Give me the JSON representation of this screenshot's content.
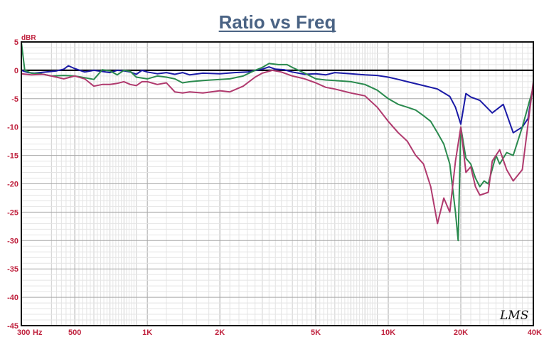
{
  "chart_data": {
    "type": "line",
    "title": "Ratio vs Freq",
    "ylabel": "dBR",
    "xlabel": "",
    "xscale": "log",
    "xlim": [
      300,
      40000
    ],
    "ylim": [
      -45,
      5
    ],
    "grid": true,
    "yticks": [
      5,
      0,
      -5,
      -10,
      -15,
      -20,
      -25,
      -30,
      -35,
      -40,
      -45
    ],
    "xticks": [
      {
        "value": 300,
        "label": "300"
      },
      {
        "value": 500,
        "label": "500"
      },
      {
        "value": 1000,
        "label": "1K"
      },
      {
        "value": 2000,
        "label": "2K"
      },
      {
        "value": 5000,
        "label": "5K"
      },
      {
        "value": 10000,
        "label": "10K"
      },
      {
        "value": 20000,
        "label": "20K"
      },
      {
        "value": 40000,
        "label": "40K"
      }
    ],
    "x_unit_label": "Hz",
    "watermark": "LMS",
    "series": [
      {
        "color": "#1a1aa6",
        "points": [
          [
            300,
            0.0
          ],
          [
            320,
            -0.4
          ],
          [
            340,
            -0.5
          ],
          [
            380,
            -0.3
          ],
          [
            420,
            -0.1
          ],
          [
            450,
            0.2
          ],
          [
            470,
            0.8
          ],
          [
            500,
            0.3
          ],
          [
            550,
            -0.3
          ],
          [
            600,
            0.0
          ],
          [
            650,
            -0.2
          ],
          [
            700,
            -0.4
          ],
          [
            750,
            0.0
          ],
          [
            800,
            -0.1
          ],
          [
            850,
            -0.3
          ],
          [
            900,
            -0.7
          ],
          [
            950,
            0.0
          ],
          [
            1000,
            -0.3
          ],
          [
            1100,
            -0.6
          ],
          [
            1200,
            -0.4
          ],
          [
            1300,
            -0.7
          ],
          [
            1400,
            -0.4
          ],
          [
            1500,
            -0.8
          ],
          [
            1700,
            -0.5
          ],
          [
            2000,
            -0.6
          ],
          [
            2300,
            -0.4
          ],
          [
            2600,
            -0.3
          ],
          [
            3000,
            0.2
          ],
          [
            3200,
            0.6
          ],
          [
            3400,
            0.2
          ],
          [
            3700,
            0.1
          ],
          [
            4000,
            -0.3
          ],
          [
            4500,
            -0.7
          ],
          [
            5000,
            -0.6
          ],
          [
            5500,
            -0.8
          ],
          [
            6000,
            -0.4
          ],
          [
            7000,
            -0.6
          ],
          [
            8000,
            -0.8
          ],
          [
            9000,
            -0.9
          ],
          [
            10000,
            -1.2
          ],
          [
            11000,
            -1.6
          ],
          [
            12000,
            -2.0
          ],
          [
            14000,
            -2.7
          ],
          [
            16000,
            -3.3
          ],
          [
            18000,
            -4.6
          ],
          [
            19000,
            -6.5
          ],
          [
            20000,
            -9.5
          ],
          [
            21000,
            -4.1
          ],
          [
            22000,
            -4.7
          ],
          [
            24000,
            -5.3
          ],
          [
            27000,
            -7.5
          ],
          [
            30000,
            -6.0
          ],
          [
            33000,
            -11.0
          ],
          [
            36000,
            -10.0
          ],
          [
            38000,
            -8.5
          ],
          [
            40000,
            -2.5
          ]
        ]
      },
      {
        "color": "#2a8a4e",
        "points": [
          [
            300,
            5.0
          ],
          [
            310,
            0.0
          ],
          [
            330,
            -0.5
          ],
          [
            360,
            -0.6
          ],
          [
            400,
            -1.0
          ],
          [
            450,
            -0.9
          ],
          [
            500,
            -1.0
          ],
          [
            550,
            -1.3
          ],
          [
            600,
            -1.6
          ],
          [
            650,
            0.1
          ],
          [
            700,
            -0.1
          ],
          [
            750,
            -0.8
          ],
          [
            800,
            0.0
          ],
          [
            850,
            -0.2
          ],
          [
            900,
            -1.2
          ],
          [
            1000,
            -1.5
          ],
          [
            1100,
            -1.0
          ],
          [
            1200,
            -1.2
          ],
          [
            1300,
            -1.5
          ],
          [
            1400,
            -2.2
          ],
          [
            1500,
            -2.0
          ],
          [
            1700,
            -1.8
          ],
          [
            2000,
            -1.6
          ],
          [
            2200,
            -1.5
          ],
          [
            2500,
            -1.0
          ],
          [
            2800,
            0.0
          ],
          [
            3000,
            0.5
          ],
          [
            3200,
            1.2
          ],
          [
            3500,
            1.0
          ],
          [
            3800,
            1.0
          ],
          [
            4000,
            0.5
          ],
          [
            4500,
            -0.5
          ],
          [
            5000,
            -1.5
          ],
          [
            5500,
            -1.7
          ],
          [
            6000,
            -1.8
          ],
          [
            7000,
            -2.0
          ],
          [
            8000,
            -2.5
          ],
          [
            9000,
            -3.5
          ],
          [
            10000,
            -5.0
          ],
          [
            11000,
            -6.0
          ],
          [
            12000,
            -6.5
          ],
          [
            13000,
            -7.0
          ],
          [
            14000,
            -8.0
          ],
          [
            15000,
            -9.0
          ],
          [
            16000,
            -11.0
          ],
          [
            17000,
            -13.0
          ],
          [
            18000,
            -16.5
          ],
          [
            19000,
            -25.0
          ],
          [
            19500,
            -30.0
          ],
          [
            20000,
            -10.0
          ],
          [
            21000,
            -15.5
          ],
          [
            22000,
            -16.5
          ],
          [
            23000,
            -19.0
          ],
          [
            24000,
            -20.5
          ],
          [
            25000,
            -19.5
          ],
          [
            26000,
            -20.0
          ],
          [
            28000,
            -15.0
          ],
          [
            29000,
            -16.5
          ],
          [
            31000,
            -14.5
          ],
          [
            33000,
            -15.0
          ],
          [
            36000,
            -10.0
          ],
          [
            40000,
            -3.0
          ]
        ]
      },
      {
        "color": "#b03a6e",
        "points": [
          [
            300,
            -0.6
          ],
          [
            330,
            -0.8
          ],
          [
            370,
            -0.7
          ],
          [
            400,
            -1.0
          ],
          [
            450,
            -1.5
          ],
          [
            500,
            -1.0
          ],
          [
            550,
            -1.5
          ],
          [
            600,
            -2.8
          ],
          [
            650,
            -2.5
          ],
          [
            700,
            -2.5
          ],
          [
            750,
            -2.3
          ],
          [
            800,
            -2.0
          ],
          [
            850,
            -2.5
          ],
          [
            900,
            -2.7
          ],
          [
            950,
            -2.0
          ],
          [
            1000,
            -2.0
          ],
          [
            1100,
            -2.5
          ],
          [
            1200,
            -2.2
          ],
          [
            1300,
            -3.8
          ],
          [
            1400,
            -4.0
          ],
          [
            1500,
            -3.8
          ],
          [
            1700,
            -4.0
          ],
          [
            2000,
            -3.6
          ],
          [
            2200,
            -3.8
          ],
          [
            2500,
            -2.8
          ],
          [
            2800,
            -1.2
          ],
          [
            3000,
            -0.5
          ],
          [
            3300,
            0.0
          ],
          [
            3600,
            -0.3
          ],
          [
            4000,
            -1.0
          ],
          [
            4500,
            -1.5
          ],
          [
            5000,
            -2.2
          ],
          [
            5500,
            -3.0
          ],
          [
            6000,
            -3.3
          ],
          [
            7000,
            -4.0
          ],
          [
            8000,
            -4.5
          ],
          [
            9000,
            -6.5
          ],
          [
            10000,
            -9.0
          ],
          [
            11000,
            -11.0
          ],
          [
            12000,
            -12.5
          ],
          [
            13000,
            -15.0
          ],
          [
            14000,
            -16.5
          ],
          [
            15000,
            -20.5
          ],
          [
            16000,
            -27.0
          ],
          [
            17000,
            -22.5
          ],
          [
            18000,
            -25.0
          ],
          [
            19000,
            -16.0
          ],
          [
            20000,
            -10.0
          ],
          [
            21000,
            -18.0
          ],
          [
            22000,
            -17.0
          ],
          [
            23000,
            -20.5
          ],
          [
            24000,
            -22.0
          ],
          [
            26000,
            -21.5
          ],
          [
            27000,
            -16.0
          ],
          [
            29000,
            -14.0
          ],
          [
            31000,
            -17.5
          ],
          [
            33000,
            -19.5
          ],
          [
            36000,
            -17.5
          ],
          [
            40000,
            -2.0
          ]
        ]
      }
    ]
  }
}
